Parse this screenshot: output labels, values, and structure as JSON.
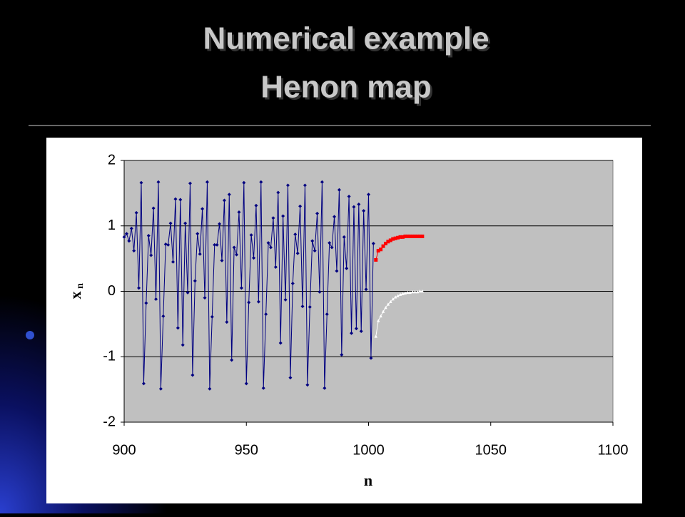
{
  "slide": {
    "title_lines": [
      "Numerical example",
      "Henon map"
    ]
  },
  "chart_data": {
    "type": "line",
    "xlabel": "n",
    "ylabel": "x",
    "ylabel_subscript": "n",
    "xlim": [
      900,
      1100
    ],
    "xticks": [
      900,
      950,
      1000,
      1050,
      1100
    ],
    "ylim": [
      -2,
      2
    ],
    "yticks": [
      -2,
      -1,
      0,
      1,
      2
    ],
    "grid": true,
    "series": [
      {
        "color": "#000080",
        "marker": "diamond",
        "x": [
          900,
          901,
          902,
          903,
          904,
          905,
          906,
          907,
          908,
          909,
          910,
          911,
          912,
          913,
          914,
          915,
          916,
          917,
          918,
          919,
          920,
          921,
          922,
          923,
          924,
          925,
          926,
          927,
          928,
          929,
          930,
          931,
          932,
          933,
          934,
          935,
          936,
          937,
          938,
          939,
          940,
          941,
          942,
          943,
          944,
          945,
          946,
          947,
          948,
          949,
          950,
          951,
          952,
          953,
          954,
          955,
          956,
          957,
          958,
          959,
          960,
          961,
          962,
          963,
          964,
          965,
          966,
          967,
          968,
          969,
          970,
          971,
          972,
          973,
          974,
          975,
          976,
          977,
          978,
          979,
          980,
          981,
          982,
          983,
          984,
          985,
          986,
          987,
          988,
          989,
          990,
          991,
          992,
          993,
          994,
          995,
          996,
          997,
          998,
          999,
          1000,
          1001,
          1002
        ],
        "values": [
          0.83,
          0.88,
          0.77,
          0.96,
          0.62,
          1.2,
          0.05,
          1.66,
          -1.41,
          -0.18,
          0.85,
          0.55,
          1.27,
          -0.12,
          1.67,
          -1.49,
          -0.38,
          0.72,
          0.71,
          1.04,
          0.45,
          1.41,
          -0.56,
          1.4,
          -0.82,
          1.04,
          -0.02,
          1.65,
          -1.28,
          0.16,
          0.88,
          0.57,
          1.26,
          -0.1,
          1.67,
          -1.49,
          -0.39,
          0.71,
          0.71,
          1.03,
          0.47,
          1.39,
          -0.47,
          1.48,
          -1.05,
          0.67,
          0.56,
          1.21,
          0.05,
          1.66,
          -1.41,
          -0.17,
          0.86,
          0.51,
          1.31,
          -0.16,
          1.67,
          -1.48,
          -0.35,
          0.74,
          0.67,
          1.12,
          0.37,
          1.51,
          -0.79,
          1.15,
          -0.13,
          1.62,
          -1.32,
          0.12,
          0.87,
          0.58,
          1.3,
          -0.23,
          1.62,
          -1.43,
          -0.24,
          0.77,
          0.62,
          1.19,
          -0.01,
          1.67,
          -1.48,
          -0.35,
          0.74,
          0.67,
          1.14,
          0.31,
          1.55,
          -0.97,
          0.83,
          0.35,
          1.45,
          -0.64,
          1.29,
          -0.57,
          1.33,
          -0.61,
          1.23,
          0.03,
          1.48,
          -1.02,
          0.73
        ]
      },
      {
        "color": "#ff0000",
        "marker": "square",
        "x": [
          1003,
          1004,
          1005,
          1006,
          1007,
          1008,
          1009,
          1010,
          1011,
          1012,
          1013,
          1014,
          1015,
          1016,
          1017,
          1018,
          1019,
          1020,
          1021,
          1022
        ],
        "values": [
          0.48,
          0.62,
          0.64,
          0.69,
          0.73,
          0.76,
          0.78,
          0.8,
          0.81,
          0.82,
          0.83,
          0.83,
          0.84,
          0.84,
          0.84,
          0.84,
          0.84,
          0.84,
          0.84,
          0.84
        ]
      },
      {
        "color": "#ffffff",
        "marker": "triangle",
        "x": [
          1003,
          1004,
          1005,
          1006,
          1007,
          1008,
          1009,
          1010,
          1011,
          1012,
          1013,
          1014,
          1015,
          1016,
          1017,
          1018,
          1019,
          1020,
          1021,
          1022
        ],
        "values": [
          -0.69,
          -0.45,
          -0.38,
          -0.31,
          -0.25,
          -0.2,
          -0.16,
          -0.12,
          -0.09,
          -0.07,
          -0.05,
          -0.04,
          -0.03,
          -0.02,
          -0.02,
          -0.01,
          -0.01,
          -0.01,
          0,
          0
        ]
      }
    ]
  }
}
